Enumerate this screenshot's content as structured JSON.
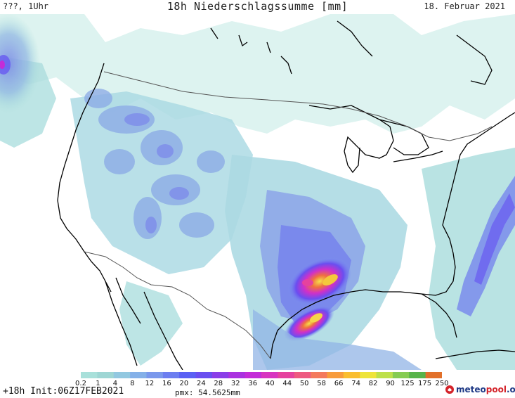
{
  "header": {
    "left": "???, 1Uhr",
    "title": "18h Niederschlagssumme [mm]",
    "date": "18. Februar 2021"
  },
  "legend": {
    "ticks": [
      "0.2",
      "1",
      "4",
      "8",
      "12",
      "16",
      "20",
      "24",
      "28",
      "32",
      "36",
      "40",
      "44",
      "50",
      "58",
      "66",
      "74",
      "82",
      "90",
      "125",
      "175",
      "250"
    ],
    "colors": [
      "#a8e0da",
      "#9ed6d4",
      "#92c8e0",
      "#84b0e8",
      "#7a98ec",
      "#6c7ef0",
      "#5a60f4",
      "#6a4ef0",
      "#8a3ee8",
      "#aa32e0",
      "#c42cd8",
      "#d834c0",
      "#e6429e",
      "#ee5a80",
      "#f47a5c",
      "#f89c3c",
      "#fabe30",
      "#eee43a",
      "#bde04a",
      "#86cc52",
      "#58b44a",
      "#e2702a"
    ]
  },
  "footer": {
    "run": "+18h Init:06Z17FEB2021",
    "pmx": "pmx: 54.5625mm"
  },
  "logo": {
    "name": "meteo",
    "accent": "pool",
    "suffix": ".org"
  },
  "map": {
    "background": "#ffffff",
    "coast_color": "#000000",
    "border_color": "#555555"
  }
}
